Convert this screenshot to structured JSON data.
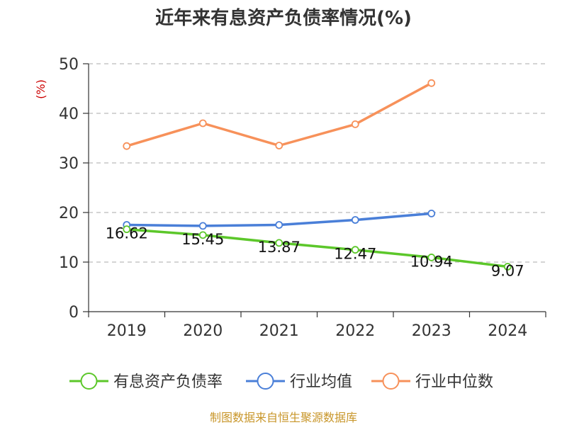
{
  "chart_data": {
    "type": "line",
    "title": "近年来有息资产负债率情况(%)",
    "ylabel": "(%)",
    "categories": [
      "2019",
      "2020",
      "2021",
      "2022",
      "2023",
      "2024"
    ],
    "ylim": [
      0,
      50
    ],
    "yticks": [
      "0",
      "10",
      "20",
      "30",
      "40",
      "50"
    ],
    "grid": "horizontal-dashed",
    "legend_position": "bottom",
    "series": [
      {
        "name": "有息资产负债率",
        "color": "#5cc72a",
        "values": [
          16.62,
          15.45,
          13.87,
          12.47,
          10.94,
          9.07
        ],
        "labels": [
          "16.62",
          "15.45",
          "13.87",
          "12.47",
          "10.94",
          "9.07"
        ]
      },
      {
        "name": "行业均值",
        "color": "#4a7fd8",
        "values": [
          17.5,
          17.3,
          17.5,
          18.5,
          19.8,
          null
        ]
      },
      {
        "name": "行业中位数",
        "color": "#f7915a",
        "values": [
          33.4,
          38.0,
          33.5,
          37.8,
          46.1,
          null
        ]
      }
    ]
  },
  "footer": {
    "source": "制图数据来自恒生聚源数据库"
  }
}
